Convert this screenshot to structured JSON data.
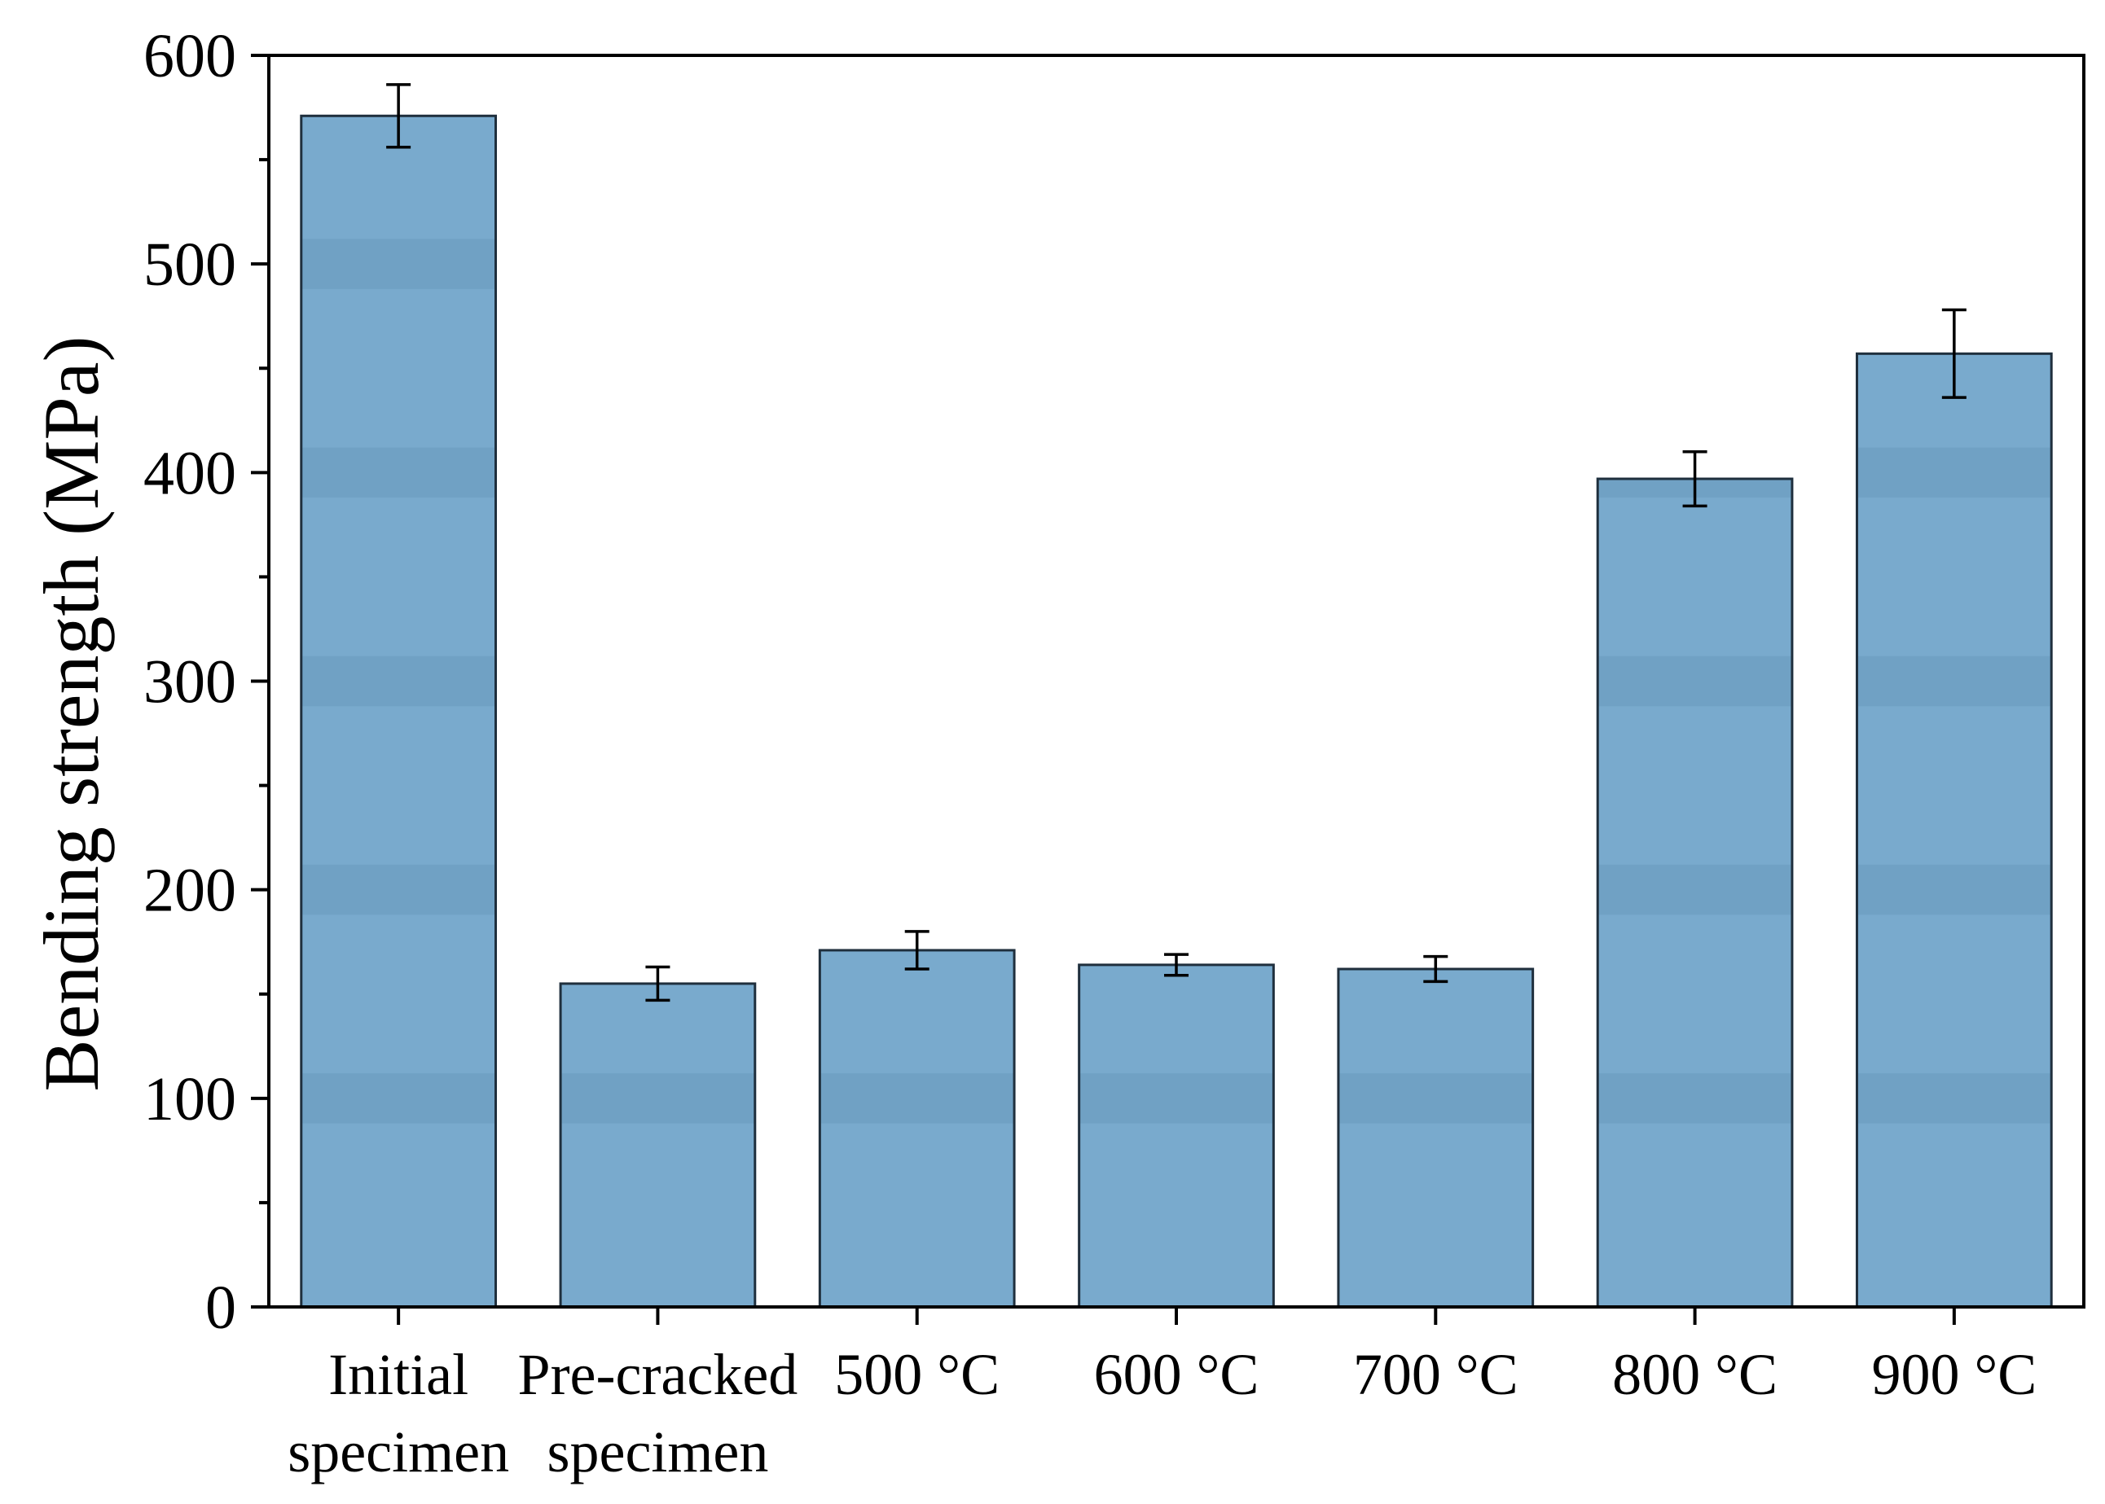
{
  "chart_data": {
    "type": "bar",
    "ylabel": "Bending strength (MPa)",
    "xlabel": "",
    "ylim": [
      0,
      600
    ],
    "yticks": [
      0,
      100,
      200,
      300,
      400,
      500,
      600
    ],
    "categories": [
      [
        "Initial",
        "specimen"
      ],
      [
        "Pre-cracked",
        "specimen"
      ],
      [
        "500 °C"
      ],
      [
        "600 °C"
      ],
      [
        "700 °C"
      ],
      [
        "800 °C"
      ],
      [
        "900 °C"
      ]
    ],
    "values": [
      571,
      155,
      171,
      164,
      162,
      397,
      457
    ],
    "errors": [
      15,
      8,
      9,
      5,
      6,
      13,
      21
    ],
    "grid": false,
    "legend": "none",
    "colors": {
      "bar_fill": "#79aacd",
      "bar_band": "#70a1c4",
      "bar_stroke": "#1f2f3d",
      "axis": "#000000"
    }
  }
}
